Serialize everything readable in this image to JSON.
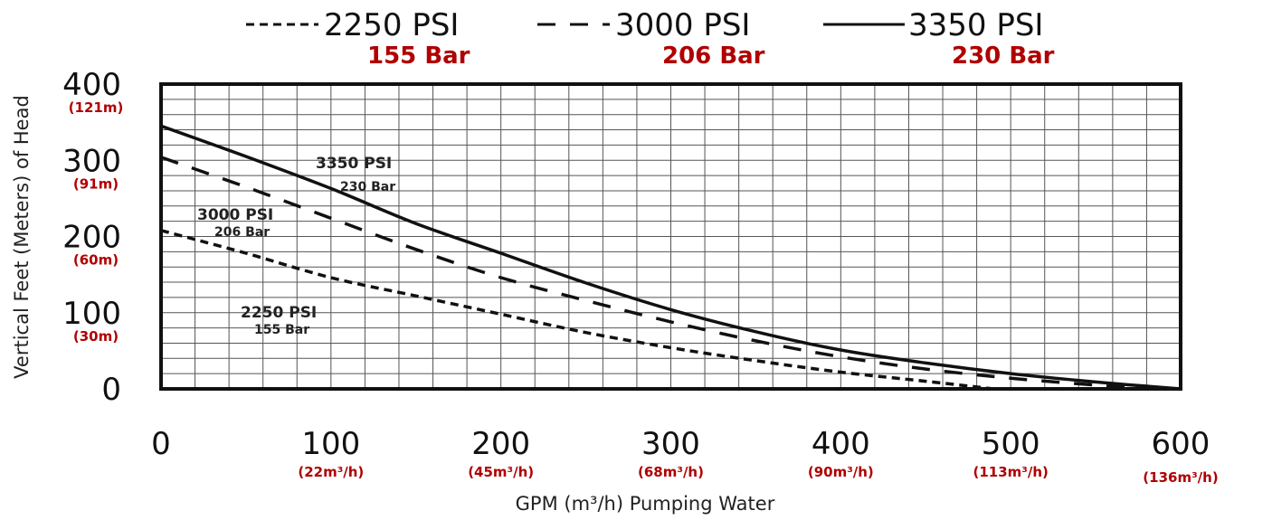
{
  "chart_data": {
    "type": "line",
    "xlabel": "GPM (m³/h) Pumping Water",
    "ylabel": "Vertical Feet (Meters) of Head",
    "xlim": [
      0,
      600
    ],
    "ylim": [
      0,
      400
    ],
    "x_ticks": [
      {
        "value": 0,
        "label": "0",
        "sub": ""
      },
      {
        "value": 100,
        "label": "100",
        "sub": "(22m³/h)"
      },
      {
        "value": 200,
        "label": "200",
        "sub": "(45m³/h)"
      },
      {
        "value": 300,
        "label": "300",
        "sub": "(68m³/h)"
      },
      {
        "value": 400,
        "label": "400",
        "sub": "(90m³/h)"
      },
      {
        "value": 500,
        "label": "500",
        "sub": "(113m³/h)"
      },
      {
        "value": 600,
        "label": "600",
        "sub": "(136m³/h)"
      }
    ],
    "y_ticks": [
      {
        "value": 0,
        "label": "0",
        "sub": ""
      },
      {
        "value": 100,
        "label": "100",
        "sub": "(30m)"
      },
      {
        "value": 200,
        "label": "200",
        "sub": "(60m)"
      },
      {
        "value": 300,
        "label": "300",
        "sub": "(91m)"
      },
      {
        "value": 400,
        "label": "400",
        "sub": "(121m)"
      }
    ],
    "grid": true,
    "legend_position": "top",
    "series": [
      {
        "name": "2250 PSI",
        "sub": "155 Bar",
        "style": "dotted",
        "x": [
          0,
          50,
          100,
          150,
          200,
          250,
          300,
          350,
          400,
          450,
          490
        ],
        "y": [
          208,
          178,
          146,
          122,
          98,
          74,
          54,
          37,
          22,
          10,
          0
        ]
      },
      {
        "name": "3000 PSI",
        "sub": "206 Bar",
        "style": "dashed",
        "x": [
          0,
          50,
          100,
          150,
          200,
          250,
          300,
          350,
          400,
          450,
          500,
          550,
          580
        ],
        "y": [
          304,
          265,
          224,
          183,
          146,
          116,
          88,
          63,
          42,
          26,
          14,
          5,
          0
        ]
      },
      {
        "name": "3350 PSI",
        "sub": "230 Bar",
        "style": "solid",
        "x": [
          0,
          50,
          100,
          150,
          200,
          250,
          300,
          350,
          400,
          450,
          500,
          550,
          600
        ],
        "y": [
          345,
          305,
          263,
          217,
          178,
          139,
          104,
          75,
          51,
          34,
          20,
          9,
          0
        ]
      }
    ],
    "annotations": [
      {
        "series": 2,
        "psi": "3350 PSI",
        "bar": "230 Bar"
      },
      {
        "series": 1,
        "psi": "3000 PSI",
        "bar": "206 Bar"
      },
      {
        "series": 0,
        "psi": "2250 PSI",
        "bar": "155 Bar"
      }
    ]
  },
  "colors": {
    "line": "#111111",
    "grid": "#555555",
    "accent_red": "#b00000"
  }
}
